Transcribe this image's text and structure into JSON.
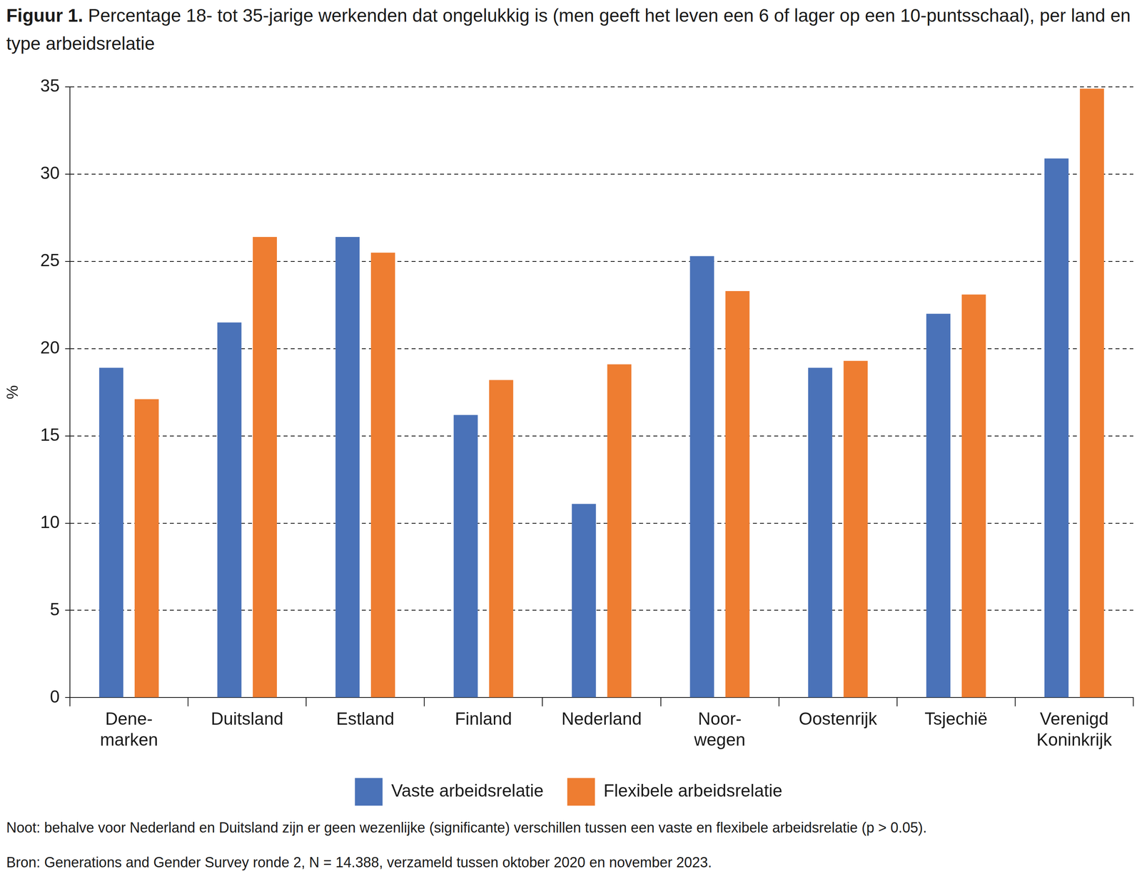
{
  "chart_data": {
    "type": "bar",
    "title": "Figuur 1. Percentage 18- tot 35-jarige werkenden dat ongelukkig is (men geeft het leven een 6 of lager op een 10-puntsschaal), per land en type arbeidsrelatie",
    "y_label": "%",
    "categories": [
      "Dene-\nmarken",
      "Duitsland",
      "Estland",
      "Finland",
      "Nederland",
      "Noor-\nwegen",
      "Oostenrijk",
      "Tsjechië",
      "Verenigd\nKoninkrijk"
    ],
    "series": [
      {
        "name": "Vaste arbeidsrelatie",
        "color": "#4a72b8",
        "values": [
          18.9,
          21.5,
          26.4,
          16.2,
          11.1,
          25.3,
          18.9,
          22.0,
          30.9
        ]
      },
      {
        "name": "Flexibele arbeidsrelatie",
        "color": "#ee7d31",
        "values": [
          17.1,
          26.4,
          25.5,
          18.2,
          19.1,
          23.3,
          19.3,
          23.1,
          34.9
        ]
      }
    ],
    "ylim": [
      0,
      35
    ],
    "yticks": [
      0,
      5,
      10,
      15,
      20,
      25,
      30,
      35
    ],
    "grid": true,
    "legend": "bottom",
    "notes": [
      "Noot: behalve voor Nederland en Duitsland zijn er geen wezenlijke (significante) verschillen tussen een vaste en flexibele arbeidsrelatie (p > 0.05).",
      "Bron: Generations and Gender Survey ronde 2, N = 14.388, verzameld tussen oktober 2020 en november 2023."
    ]
  }
}
